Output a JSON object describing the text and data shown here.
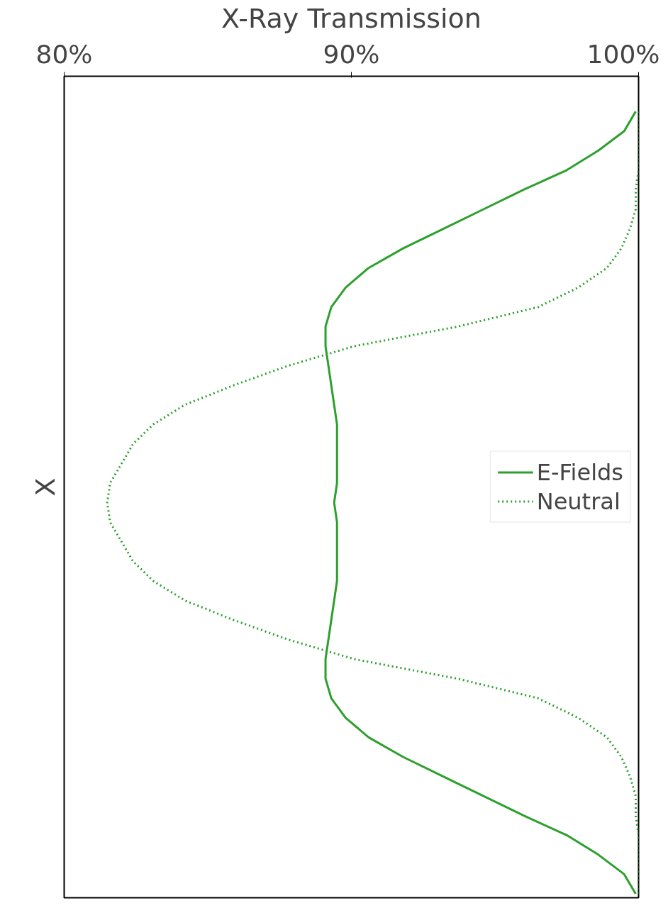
{
  "chart_data": {
    "type": "line",
    "orientation": "horizontal",
    "xlabel": "X-Ray Transmission",
    "ylabel": "X",
    "categories": [
      null,
      null,
      null,
      null,
      null,
      null,
      null,
      null,
      null,
      null,
      null,
      null,
      null,
      null,
      null,
      null,
      null,
      null,
      null,
      null,
      null,
      null,
      null,
      null,
      null,
      null,
      null,
      null,
      null,
      null,
      null,
      null,
      null,
      null,
      null,
      null,
      null,
      null,
      null,
      null,
      null
    ],
    "xlim": [
      80,
      100
    ],
    "xticks": [
      {
        "value": 80,
        "label": "80%"
      },
      {
        "value": 90,
        "label": "90%"
      },
      {
        "value": 100,
        "label": "100%"
      }
    ],
    "series": [
      {
        "name": "E-Fields",
        "color": "#2ca02c",
        "line_style": "solid",
        "values": [
          99.9,
          99.5,
          98.6,
          97.5,
          96.0,
          94.6,
          93.2,
          91.8,
          90.6,
          89.8,
          89.3,
          89.1,
          89.1,
          89.2,
          89.3,
          89.4,
          89.5,
          89.5,
          89.5,
          89.5,
          89.4,
          89.5,
          89.5,
          89.5,
          89.5,
          89.4,
          89.3,
          89.2,
          89.1,
          89.1,
          89.3,
          89.8,
          90.6,
          91.8,
          93.2,
          94.6,
          96.0,
          97.5,
          98.6,
          99.5,
          99.9
        ]
      },
      {
        "name": "Neutral",
        "color": "#2ca02c",
        "line_style": "dotted",
        "values": [
          100,
          100,
          100,
          100,
          99.9,
          99.9,
          99.7,
          99.4,
          98.9,
          97.9,
          96.5,
          93.7,
          90.1,
          87.8,
          85.9,
          84.2,
          83.1,
          82.4,
          82.0,
          81.6,
          81.5,
          81.6,
          82.0,
          82.4,
          83.1,
          84.2,
          85.9,
          87.8,
          90.1,
          93.7,
          96.5,
          97.9,
          98.9,
          99.4,
          99.7,
          99.9,
          99.9,
          100,
          100,
          100,
          100
        ]
      }
    ],
    "legend": "right",
    "grid": false,
    "tick_labels": "x"
  }
}
